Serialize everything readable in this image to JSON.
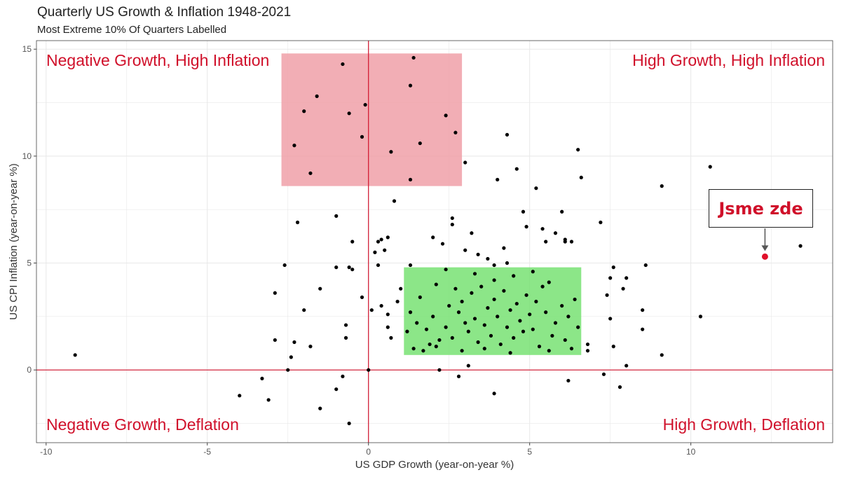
{
  "chart_data": {
    "type": "scatter",
    "title": "Quarterly US Growth & Inflation 1948-2021",
    "subtitle": "Most Extreme 10% Of Quarters Labelled",
    "xlabel": "US GDP Growth (year-on-year %)",
    "ylabel": "US CPI Inflation (year-on-year %)",
    "xlim": [
      -10.3,
      14.4
    ],
    "ylim": [
      -3.4,
      15.4
    ],
    "xticks": [
      "-10",
      "-5",
      "0",
      "5",
      "10"
    ],
    "yticks": [
      "0",
      "5",
      "10",
      "15"
    ],
    "grid": true,
    "reference_lines": {
      "x": 0,
      "y": 0,
      "color": "#d0102a"
    },
    "quadrant_labels": {
      "top_left": "Negative Growth, High Inflation",
      "top_right": "High Growth, High Inflation",
      "bottom_left": "Negative Growth, Deflation",
      "bottom_right": "High Growth, Deflation"
    },
    "regions": [
      {
        "x": [
          -2.7,
          2.9
        ],
        "y": [
          8.6,
          14.8
        ],
        "color": "#ef9aa3"
      },
      {
        "x": [
          1.1,
          6.6
        ],
        "y": [
          0.7,
          4.8
        ],
        "color": "#6fe06a"
      }
    ],
    "highlight": {
      "x": 12.3,
      "y": 5.3,
      "label": "Jsme zde",
      "color": "#e0102a"
    },
    "points": [
      [
        -9.1,
        0.7
      ],
      [
        -4.0,
        -1.2
      ],
      [
        -3.3,
        -0.4
      ],
      [
        -3.1,
        -1.4
      ],
      [
        -2.9,
        1.4
      ],
      [
        -2.9,
        3.6
      ],
      [
        -2.6,
        4.9
      ],
      [
        -2.5,
        0.0
      ],
      [
        -2.4,
        0.6
      ],
      [
        -2.3,
        1.3
      ],
      [
        -2.2,
        6.9
      ],
      [
        -2.0,
        2.8
      ],
      [
        -1.8,
        1.1
      ],
      [
        -1.5,
        3.8
      ],
      [
        -1.5,
        -1.8
      ],
      [
        -1.0,
        7.2
      ],
      [
        -1.0,
        4.8
      ],
      [
        -1.0,
        -0.9
      ],
      [
        -0.8,
        -0.3
      ],
      [
        -0.7,
        2.1
      ],
      [
        -0.7,
        1.5
      ],
      [
        -0.6,
        4.8
      ],
      [
        -0.5,
        4.7
      ],
      [
        -0.6,
        -2.5
      ],
      [
        -0.2,
        3.4
      ],
      [
        0.1,
        2.8
      ],
      [
        0.2,
        5.5
      ],
      [
        0.3,
        6.0
      ],
      [
        0.3,
        4.9
      ],
      [
        0.4,
        6.1
      ],
      [
        0.4,
        3.0
      ],
      [
        0.5,
        5.6
      ],
      [
        0.6,
        2.6
      ],
      [
        0.6,
        2.0
      ],
      [
        0.6,
        6.2
      ],
      [
        0.7,
        1.5
      ],
      [
        0.8,
        7.9
      ],
      [
        0.9,
        3.2
      ],
      [
        1.0,
        3.8
      ],
      [
        1.3,
        4.9
      ],
      [
        2.0,
        6.2
      ],
      [
        2.1,
        1.1
      ],
      [
        2.2,
        0.0
      ],
      [
        2.3,
        5.9
      ],
      [
        2.4,
        4.7
      ],
      [
        2.6,
        7.1
      ],
      [
        2.6,
        6.8
      ],
      [
        2.8,
        -0.3
      ],
      [
        3.0,
        5.6
      ],
      [
        3.1,
        0.2
      ],
      [
        3.2,
        6.4
      ],
      [
        3.4,
        5.4
      ],
      [
        3.7,
        5.2
      ],
      [
        3.9,
        4.9
      ],
      [
        3.9,
        -1.1
      ],
      [
        4.0,
        8.9
      ],
      [
        4.2,
        5.7
      ],
      [
        4.3,
        5.0
      ],
      [
        4.6,
        9.4
      ],
      [
        4.8,
        7.4
      ],
      [
        4.9,
        6.7
      ],
      [
        5.2,
        8.5
      ],
      [
        5.4,
        6.6
      ],
      [
        5.5,
        6.0
      ],
      [
        5.8,
        6.4
      ],
      [
        6.0,
        7.4
      ],
      [
        6.1,
        6.1
      ],
      [
        6.1,
        6.0
      ],
      [
        6.2,
        -0.5
      ],
      [
        6.3,
        6.0
      ],
      [
        6.5,
        10.3
      ],
      [
        6.6,
        9.0
      ],
      [
        6.8,
        1.2
      ],
      [
        6.8,
        0.9
      ],
      [
        7.2,
        6.9
      ],
      [
        7.3,
        -0.2
      ],
      [
        7.4,
        3.5
      ],
      [
        7.5,
        4.3
      ],
      [
        7.5,
        2.4
      ],
      [
        7.6,
        4.8
      ],
      [
        7.6,
        1.1
      ],
      [
        7.8,
        -0.8
      ],
      [
        7.9,
        3.8
      ],
      [
        8.0,
        4.3
      ],
      [
        8.0,
        0.2
      ],
      [
        8.5,
        2.8
      ],
      [
        8.5,
        1.9
      ],
      [
        8.6,
        4.9
      ],
      [
        9.1,
        8.6
      ],
      [
        9.1,
        0.7
      ],
      [
        10.3,
        2.5
      ],
      [
        10.6,
        9.5
      ],
      [
        13.4,
        5.8
      ],
      [
        -0.8,
        14.3
      ],
      [
        1.4,
        14.6
      ],
      [
        1.3,
        13.3
      ],
      [
        -1.6,
        12.8
      ],
      [
        -2.0,
        12.1
      ],
      [
        -0.6,
        12.0
      ],
      [
        -0.1,
        12.4
      ],
      [
        2.4,
        11.9
      ],
      [
        2.7,
        11.1
      ],
      [
        -2.3,
        10.5
      ],
      [
        -0.2,
        10.9
      ],
      [
        1.6,
        10.6
      ],
      [
        0.7,
        10.2
      ],
      [
        -1.8,
        9.2
      ],
      [
        3.0,
        9.7
      ],
      [
        1.3,
        8.9
      ],
      [
        4.3,
        11.0
      ],
      [
        -0.5,
        6.0
      ],
      [
        0.0,
        0.0
      ],
      [
        1.2,
        1.8
      ],
      [
        1.4,
        1.0
      ],
      [
        1.5,
        2.2
      ],
      [
        1.7,
        0.9
      ],
      [
        1.8,
        1.9
      ],
      [
        2.0,
        2.5
      ],
      [
        2.2,
        1.4
      ],
      [
        2.4,
        2.0
      ],
      [
        2.5,
        3.0
      ],
      [
        2.6,
        1.5
      ],
      [
        2.8,
        2.7
      ],
      [
        2.9,
        3.2
      ],
      [
        3.0,
        2.2
      ],
      [
        3.1,
        1.8
      ],
      [
        3.2,
        3.6
      ],
      [
        3.3,
        2.4
      ],
      [
        3.4,
        1.3
      ],
      [
        3.5,
        3.9
      ],
      [
        3.6,
        2.1
      ],
      [
        3.7,
        2.9
      ],
      [
        3.8,
        1.6
      ],
      [
        3.9,
        3.3
      ],
      [
        4.0,
        2.5
      ],
      [
        4.1,
        1.2
      ],
      [
        4.2,
        3.7
      ],
      [
        4.3,
        2.0
      ],
      [
        4.4,
        2.8
      ],
      [
        4.5,
        1.5
      ],
      [
        4.6,
        3.1
      ],
      [
        4.7,
        2.3
      ],
      [
        4.8,
        1.8
      ],
      [
        4.9,
        3.5
      ],
      [
        5.0,
        2.6
      ],
      [
        5.1,
        1.9
      ],
      [
        5.2,
        3.2
      ],
      [
        5.3,
        1.1
      ],
      [
        5.5,
        2.7
      ],
      [
        5.6,
        4.1
      ],
      [
        5.7,
        1.6
      ],
      [
        5.8,
        2.2
      ],
      [
        6.0,
        3.0
      ],
      [
        6.1,
        1.4
      ],
      [
        6.2,
        2.5
      ],
      [
        6.3,
        1.0
      ],
      [
        6.4,
        3.3
      ],
      [
        1.6,
        3.4
      ],
      [
        2.1,
        4.0
      ],
      [
        2.7,
        3.8
      ],
      [
        3.3,
        4.5
      ],
      [
        3.9,
        4.2
      ],
      [
        4.5,
        4.4
      ],
      [
        5.1,
        4.6
      ],
      [
        5.4,
        3.9
      ],
      [
        1.9,
        1.2
      ],
      [
        2.9,
        0.9
      ],
      [
        3.6,
        1.0
      ],
      [
        4.4,
        0.8
      ],
      [
        5.6,
        0.9
      ],
      [
        6.5,
        2.0
      ],
      [
        1.3,
        2.7
      ]
    ]
  }
}
